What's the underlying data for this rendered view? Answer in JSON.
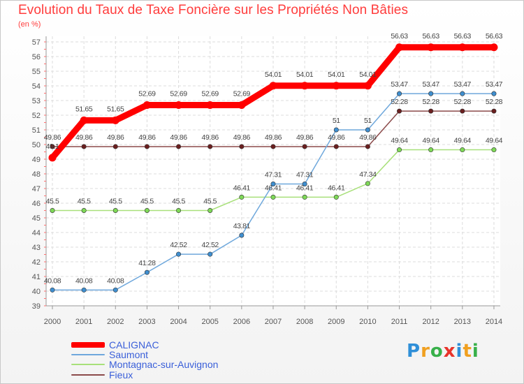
{
  "title": "Evolution du Taux de Taxe Foncière sur les Propriétés Non Bâties",
  "unit_label": "(en %)",
  "logo_text": "Proxiti",
  "chart_data": {
    "type": "line",
    "title": "Evolution du Taux de Taxe Foncière sur les Propriétés Non Bâties",
    "ylabel": "(en %)",
    "xlabel": "",
    "ylim": [
      39,
      57
    ],
    "grid": true,
    "legend_placement": "bottom-left",
    "x": [
      "2000",
      "2001",
      "2002",
      "2003",
      "2004",
      "2005",
      "2006",
      "2007",
      "2008",
      "2009",
      "2010",
      "2011",
      "2012",
      "2013",
      "2014"
    ],
    "yticks": [
      39,
      40,
      41,
      42,
      43,
      44,
      45,
      46,
      47,
      48,
      49,
      50,
      51,
      52,
      53,
      54,
      55,
      56,
      57
    ],
    "series": [
      {
        "name": "CALIGNAC",
        "color": "#ff0000",
        "values": [
          49.1,
          51.65,
          51.65,
          52.69,
          52.69,
          52.69,
          52.69,
          54.01,
          54.01,
          54.01,
          54.01,
          56.63,
          56.63,
          56.63,
          56.63
        ],
        "labels": [
          "49.1",
          "51.65",
          "51.65",
          "52.69",
          "52.69",
          "52.69",
          "52.69",
          "54.01",
          "54.01",
          "54.01",
          "54.01",
          "56.63",
          "56.63",
          "56.63",
          "56.63"
        ]
      },
      {
        "name": "Saumont",
        "color": "#6fa8dc",
        "values": [
          40.08,
          40.08,
          40.08,
          41.28,
          42.52,
          42.52,
          43.81,
          47.31,
          47.31,
          51,
          51,
          53.47,
          53.47,
          53.47,
          53.47
        ],
        "labels": [
          "40.08",
          "40.08",
          "40.08",
          "41.28",
          "42.52",
          "42.52",
          "43.81",
          "47.31",
          "47.31",
          "51",
          "51",
          "53.47",
          "53.47",
          "53.47",
          "53.47"
        ]
      },
      {
        "name": "Montagnac-sur-Auvignon",
        "color": "#a8e07a",
        "values": [
          45.5,
          45.5,
          45.5,
          45.5,
          45.5,
          45.5,
          46.41,
          46.41,
          46.41,
          46.41,
          47.34,
          49.64,
          49.64,
          49.64,
          49.64
        ],
        "labels": [
          "45.5",
          "45.5",
          "45.5",
          "45.5",
          "45.5",
          "45.5",
          "46.41",
          "46.41",
          "46.41",
          "46.41",
          "47.34",
          "49.64",
          "49.64",
          "49.64",
          "49.64"
        ]
      },
      {
        "name": "Fieux",
        "color": "#8b4a4a",
        "values": [
          49.86,
          49.86,
          49.86,
          49.86,
          49.86,
          49.86,
          49.86,
          49.86,
          49.86,
          49.86,
          49.86,
          52.28,
          52.28,
          52.28,
          52.28
        ],
        "labels": [
          "49.86",
          "49.86",
          "49.86",
          "49.86",
          "49.86",
          "49.86",
          "49.86",
          "49.86",
          "49.86",
          "49.86",
          "49.86",
          "52.28",
          "52.28",
          "52.28",
          "52.28"
        ]
      }
    ]
  }
}
